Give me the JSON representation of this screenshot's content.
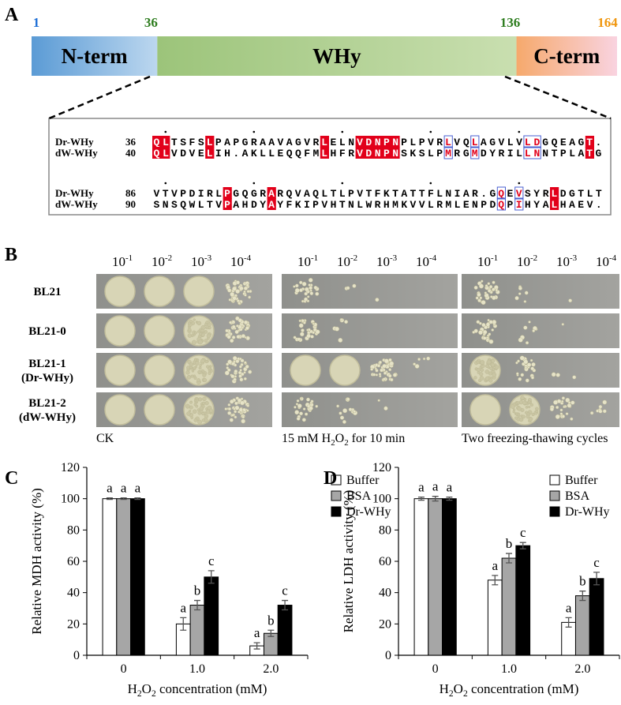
{
  "panel_a": {
    "letter": "A",
    "ticks": [
      1,
      36,
      136,
      164
    ],
    "tick_colors": [
      "#1f6fd6",
      "#2e7d1f",
      "#2e7d1f",
      "#f0960e"
    ],
    "domains": [
      {
        "name": "N-term",
        "start": 1,
        "end": 36,
        "colors": [
          "#5b9bd5",
          "#bcd7ef"
        ]
      },
      {
        "name": "WHy",
        "start": 36,
        "end": 136,
        "colors": [
          "#9cc47a",
          "#c9dfb0"
        ]
      },
      {
        "name": "C-term",
        "start": 136,
        "end": 164,
        "colors": [
          "#f6a96c",
          "#f9d3e0"
        ]
      }
    ],
    "alignment": [
      {
        "rows": [
          {
            "name": "Dr-WHy",
            "start": 36,
            "segments": [
              {
                "text": "QL",
                "style": "identical"
              },
              {
                "text": "TSFS"
              },
              {
                "text": "L",
                "style": "identical"
              },
              {
                "text": "PAPGRAAVAGVR"
              },
              {
                "text": "L",
                "style": "identical"
              },
              {
                "text": "ELN"
              },
              {
                "text": "VDNPN",
                "style": "identical"
              },
              {
                "text": "PLPVR"
              },
              {
                "text": "L",
                "style": "similar"
              },
              {
                "text": "VQ"
              },
              {
                "text": "L",
                "style": "similar"
              },
              {
                "text": "AGVLV"
              },
              {
                "text": "LD",
                "style": "similar"
              },
              {
                "text": "GQEAG"
              },
              {
                "text": "T",
                "style": "identical"
              },
              {
                "text": "."
              }
            ]
          },
          {
            "name": "dW-WHy",
            "start": 40,
            "segments": [
              {
                "text": "QL",
                "style": "identical"
              },
              {
                "text": "VDVE"
              },
              {
                "text": "L",
                "style": "identical"
              },
              {
                "text": "IH.AKLLEQQFM"
              },
              {
                "text": "L",
                "style": "identical"
              },
              {
                "text": "HFR"
              },
              {
                "text": "VDNPN",
                "style": "identical"
              },
              {
                "text": "SKSLP"
              },
              {
                "text": "M",
                "style": "similar"
              },
              {
                "text": "RG"
              },
              {
                "text": "M",
                "style": "similar"
              },
              {
                "text": "DYRIL"
              },
              {
                "text": "LN",
                "style": "similar"
              },
              {
                "text": "NTPLA"
              },
              {
                "text": "T",
                "style": "identical"
              },
              {
                "text": "G"
              }
            ]
          }
        ]
      },
      {
        "rows": [
          {
            "name": "Dr-WHy",
            "start": 86,
            "segments": [
              {
                "text": "VTVPDIRL"
              },
              {
                "text": "P",
                "style": "identical"
              },
              {
                "text": "GQGR"
              },
              {
                "text": "A",
                "style": "identical"
              },
              {
                "text": "RQVAQLTLPVTFKTATTFLNIAR.G"
              },
              {
                "text": "Q",
                "style": "similar"
              },
              {
                "text": "E"
              },
              {
                "text": "V",
                "style": "similar"
              },
              {
                "text": "SYR"
              },
              {
                "text": "L",
                "style": "identical"
              },
              {
                "text": "DGTLT"
              }
            ]
          },
          {
            "name": "dW-WHy",
            "start": 90,
            "segments": [
              {
                "text": "SNSQWLTV"
              },
              {
                "text": "P",
                "style": "identical"
              },
              {
                "text": "AHDY"
              },
              {
                "text": "A",
                "style": "identical"
              },
              {
                "text": "YFKIPVHTNLWRHMKVVLRMLENPD"
              },
              {
                "text": "Q",
                "style": "similar"
              },
              {
                "text": "P"
              },
              {
                "text": "I",
                "style": "similar"
              },
              {
                "text": "HYA"
              },
              {
                "text": "L",
                "style": "identical"
              },
              {
                "text": "HAEV."
              }
            ]
          }
        ]
      }
    ]
  },
  "panel_b": {
    "letter": "B",
    "dilutions": [
      {
        "base": "10",
        "exp": "-1"
      },
      {
        "base": "10",
        "exp": "-2"
      },
      {
        "base": "10",
        "exp": "-3"
      },
      {
        "base": "10",
        "exp": "-4"
      }
    ],
    "strains": [
      [
        "BL21"
      ],
      [
        "BL21-0"
      ],
      [
        "BL21-1",
        "(Dr-WHy)"
      ],
      [
        "BL21-2",
        "(dW-WHy)"
      ]
    ],
    "conditions": [
      [
        {
          "text": "CK"
        }
      ],
      [
        {
          "text": "15 mM H"
        },
        {
          "text": "2",
          "sub": true
        },
        {
          "text": "O"
        },
        {
          "text": "2",
          "sub": true
        },
        {
          "text": " for 10 min"
        }
      ],
      [
        {
          "text": "Two freezing-thawing cycles"
        }
      ]
    ]
  },
  "chart_data": [
    {
      "type": "bar",
      "letter": "C",
      "categories": [
        "0",
        "1.0",
        "2.0"
      ],
      "x_label": [
        {
          "text": "H"
        },
        {
          "text": "2",
          "sub": true
        },
        {
          "text": "O"
        },
        {
          "text": "2",
          "sub": true
        },
        {
          "text": " concentration (mM)"
        }
      ],
      "y_label": "Relative MDH activity (%)",
      "ylim": [
        0,
        120
      ],
      "yticks": [
        0,
        20,
        40,
        60,
        80,
        100,
        120
      ],
      "legend": "top-right",
      "series": [
        {
          "name": "Buffer",
          "color": "#ffffff",
          "values": [
            100,
            20,
            6
          ],
          "errors": [
            0.5,
            4,
            2
          ],
          "letters": [
            "a",
            "a",
            "a"
          ]
        },
        {
          "name": "BSA",
          "color": "#a6a6a6",
          "values": [
            100,
            32,
            14
          ],
          "errors": [
            0.5,
            3,
            2
          ],
          "letters": [
            "a",
            "b",
            "b"
          ]
        },
        {
          "name": "Dr-WHy",
          "color": "#000000",
          "values": [
            100,
            50,
            32
          ],
          "errors": [
            0.5,
            4,
            3
          ],
          "letters": [
            "a",
            "c",
            "c"
          ]
        }
      ]
    },
    {
      "type": "bar",
      "letter": "D",
      "categories": [
        "0",
        "1.0",
        "2.0"
      ],
      "x_label": [
        {
          "text": "H"
        },
        {
          "text": "2",
          "sub": true
        },
        {
          "text": "O"
        },
        {
          "text": "2",
          "sub": true
        },
        {
          "text": " concentration (mM)"
        }
      ],
      "y_label": "Relative LDH activity (%)",
      "ylim": [
        0,
        120
      ],
      "yticks": [
        0,
        20,
        40,
        60,
        80,
        100,
        120
      ],
      "legend": "top-right",
      "series": [
        {
          "name": "Buffer",
          "color": "#ffffff",
          "values": [
            100,
            48,
            21
          ],
          "errors": [
            1,
            3,
            3
          ],
          "letters": [
            "a",
            "a",
            "a"
          ]
        },
        {
          "name": "BSA",
          "color": "#a6a6a6",
          "values": [
            100,
            62,
            38
          ],
          "errors": [
            1.5,
            3,
            3
          ],
          "letters": [
            "a",
            "b",
            "b"
          ]
        },
        {
          "name": "Dr-WHy",
          "color": "#000000",
          "values": [
            100,
            70,
            49
          ],
          "errors": [
            1,
            2,
            4
          ],
          "letters": [
            "a",
            "c",
            "c"
          ]
        }
      ]
    }
  ]
}
